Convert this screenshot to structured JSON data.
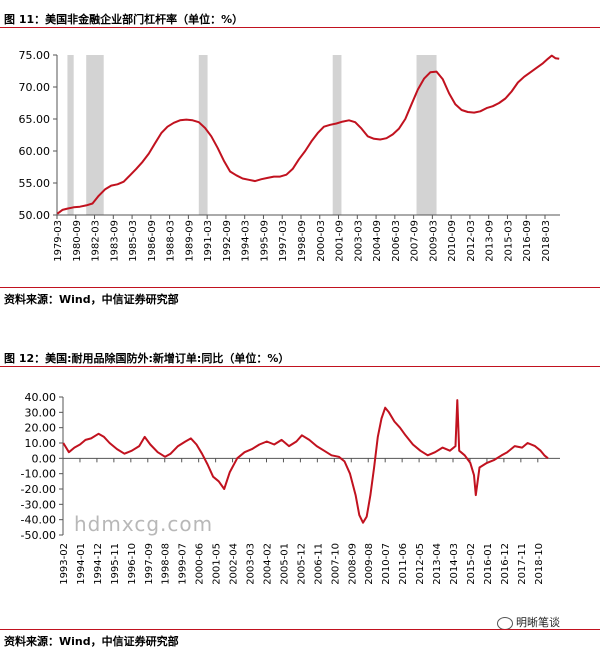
{
  "chart1": {
    "title": "图 11：美国非金融企业部门杠杆率（单位：%）",
    "source": "资料来源：Wind，中信证券研究部"
  },
  "chart2": {
    "title": "图 12：美国:耐用品除国防外:新增订单:同比（单位：%）",
    "source": "资料来源：Wind，中信证券研究部"
  },
  "watermark": "hdmxcg.com",
  "wechat_label": "明晰笔谈",
  "colors": {
    "line": "#c1121f",
    "recession": "#d3d3d3",
    "rule": "#c1121f"
  },
  "chart_data": [
    {
      "type": "line",
      "title": "",
      "xlabel": "",
      "ylabel": "",
      "ylim": [
        50,
        75
      ],
      "yticks": [
        "50.00",
        "55.00",
        "60.00",
        "65.00",
        "70.00",
        "75.00"
      ],
      "categories": [
        "1979-03",
        "1980-09",
        "1982-03",
        "1983-09",
        "1985-03",
        "1986-09",
        "1988-03",
        "1989-09",
        "1991-03",
        "1992-09",
        "1994-03",
        "1995-09",
        "1997-03",
        "1998-09",
        "2000-03",
        "2001-09",
        "2003-03",
        "2004-09",
        "2006-03",
        "2007-09",
        "2009-03",
        "2010-09",
        "2012-03",
        "2013-09",
        "2015-03",
        "2016-09",
        "2018-03"
      ],
      "recessions": [
        [
          1980.0,
          1980.5
        ],
        [
          1981.5,
          1982.9
        ],
        [
          1990.5,
          1991.2
        ],
        [
          2001.2,
          2001.9
        ],
        [
          2007.9,
          2009.5
        ]
      ],
      "series": [
        {
          "values": [
            [
              1979.2,
              50.2
            ],
            [
              1979.6,
              50.8
            ],
            [
              1980.0,
              51.0
            ],
            [
              1980.5,
              51.2
            ],
            [
              1981.0,
              51.3
            ],
            [
              1981.5,
              51.5
            ],
            [
              1982.0,
              51.8
            ],
            [
              1982.5,
              53.0
            ],
            [
              1983.0,
              54.0
            ],
            [
              1983.5,
              54.6
            ],
            [
              1984.0,
              54.8
            ],
            [
              1984.5,
              55.2
            ],
            [
              1985.0,
              56.2
            ],
            [
              1985.5,
              57.2
            ],
            [
              1986.0,
              58.3
            ],
            [
              1986.5,
              59.6
            ],
            [
              1987.0,
              61.2
            ],
            [
              1987.5,
              62.8
            ],
            [
              1988.0,
              63.8
            ],
            [
              1988.5,
              64.4
            ],
            [
              1989.0,
              64.8
            ],
            [
              1989.5,
              64.9
            ],
            [
              1990.0,
              64.8
            ],
            [
              1990.5,
              64.5
            ],
            [
              1991.0,
              63.6
            ],
            [
              1991.5,
              62.3
            ],
            [
              1992.0,
              60.5
            ],
            [
              1992.5,
              58.5
            ],
            [
              1993.0,
              56.8
            ],
            [
              1993.5,
              56.2
            ],
            [
              1994.0,
              55.7
            ],
            [
              1994.5,
              55.5
            ],
            [
              1995.0,
              55.3
            ],
            [
              1995.5,
              55.6
            ],
            [
              1996.0,
              55.8
            ],
            [
              1996.5,
              56.0
            ],
            [
              1997.0,
              56.0
            ],
            [
              1997.5,
              56.3
            ],
            [
              1998.0,
              57.2
            ],
            [
              1998.5,
              58.7
            ],
            [
              1999.0,
              60.0
            ],
            [
              1999.5,
              61.5
            ],
            [
              2000.0,
              62.8
            ],
            [
              2000.5,
              63.8
            ],
            [
              2001.0,
              64.1
            ],
            [
              2001.5,
              64.3
            ],
            [
              2002.0,
              64.6
            ],
            [
              2002.5,
              64.8
            ],
            [
              2003.0,
              64.5
            ],
            [
              2003.5,
              63.5
            ],
            [
              2004.0,
              62.3
            ],
            [
              2004.5,
              61.9
            ],
            [
              2005.0,
              61.8
            ],
            [
              2005.5,
              62.0
            ],
            [
              2006.0,
              62.6
            ],
            [
              2006.5,
              63.5
            ],
            [
              2007.0,
              65.0
            ],
            [
              2007.5,
              67.3
            ],
            [
              2008.0,
              69.6
            ],
            [
              2008.5,
              71.3
            ],
            [
              2009.0,
              72.3
            ],
            [
              2009.5,
              72.4
            ],
            [
              2010.0,
              71.2
            ],
            [
              2010.5,
              69.0
            ],
            [
              2011.0,
              67.3
            ],
            [
              2011.5,
              66.4
            ],
            [
              2012.0,
              66.1
            ],
            [
              2012.5,
              66.0
            ],
            [
              2013.0,
              66.2
            ],
            [
              2013.5,
              66.7
            ],
            [
              2014.0,
              67.0
            ],
            [
              2014.5,
              67.5
            ],
            [
              2015.0,
              68.2
            ],
            [
              2015.5,
              69.3
            ],
            [
              2016.0,
              70.7
            ],
            [
              2016.5,
              71.6
            ],
            [
              2017.0,
              72.3
            ],
            [
              2017.5,
              73.0
            ],
            [
              2018.0,
              73.7
            ],
            [
              2018.4,
              74.4
            ],
            [
              2018.7,
              74.9
            ],
            [
              2019.0,
              74.5
            ],
            [
              2019.3,
              74.4
            ]
          ]
        }
      ]
    },
    {
      "type": "line",
      "title": "",
      "xlabel": "",
      "ylabel": "",
      "ylim": [
        -50,
        40
      ],
      "yticks": [
        "-50.00",
        "-40.00",
        "-30.00",
        "-20.00",
        "-10.00",
        "0.00",
        "10.00",
        "20.00",
        "30.00",
        "40.00"
      ],
      "categories": [
        "1993-02",
        "1994-01",
        "1994-12",
        "1995-11",
        "1996-10",
        "1997-09",
        "1998-08",
        "1999-07",
        "2000-06",
        "2001-05",
        "2002-04",
        "2003-03",
        "2004-02",
        "2005-01",
        "2005-12",
        "2006-11",
        "2007-10",
        "2008-09",
        "2009-08",
        "2010-07",
        "2011-06",
        "2012-05",
        "2013-04",
        "2014-03",
        "2015-02",
        "2016-01",
        "2016-12",
        "2017-11",
        "2018-10"
      ],
      "series": [
        {
          "values": [
            [
              1993.1,
              10
            ],
            [
              1993.4,
              4
            ],
            [
              1993.7,
              7
            ],
            [
              1994.0,
              9
            ],
            [
              1994.3,
              12
            ],
            [
              1994.6,
              13
            ],
            [
              1995.0,
              16
            ],
            [
              1995.3,
              14
            ],
            [
              1995.6,
              10
            ],
            [
              1996.0,
              6
            ],
            [
              1996.4,
              3
            ],
            [
              1996.8,
              5
            ],
            [
              1997.2,
              8
            ],
            [
              1997.5,
              14
            ],
            [
              1997.8,
              9
            ],
            [
              1998.2,
              4
            ],
            [
              1998.6,
              1
            ],
            [
              1998.9,
              3
            ],
            [
              1999.3,
              8
            ],
            [
              1999.7,
              11
            ],
            [
              2000.0,
              13
            ],
            [
              2000.3,
              9
            ],
            [
              2000.6,
              3
            ],
            [
              2000.9,
              -4
            ],
            [
              2001.2,
              -12
            ],
            [
              2001.5,
              -15
            ],
            [
              2001.8,
              -20
            ],
            [
              2002.1,
              -9
            ],
            [
              2002.5,
              0
            ],
            [
              2002.9,
              4
            ],
            [
              2003.3,
              6
            ],
            [
              2003.7,
              9
            ],
            [
              2004.1,
              11
            ],
            [
              2004.5,
              9
            ],
            [
              2004.9,
              12
            ],
            [
              2005.3,
              8
            ],
            [
              2005.7,
              11
            ],
            [
              2006.0,
              15
            ],
            [
              2006.4,
              12
            ],
            [
              2006.8,
              8
            ],
            [
              2007.2,
              5
            ],
            [
              2007.6,
              2
            ],
            [
              2008.0,
              1
            ],
            [
              2008.3,
              -2
            ],
            [
              2008.6,
              -10
            ],
            [
              2008.9,
              -24
            ],
            [
              2009.1,
              -37
            ],
            [
              2009.3,
              -42
            ],
            [
              2009.5,
              -38
            ],
            [
              2009.7,
              -24
            ],
            [
              2009.9,
              -6
            ],
            [
              2010.1,
              14
            ],
            [
              2010.3,
              26
            ],
            [
              2010.5,
              33
            ],
            [
              2010.7,
              30
            ],
            [
              2011.0,
              24
            ],
            [
              2011.3,
              20
            ],
            [
              2011.6,
              15
            ],
            [
              2012.0,
              9
            ],
            [
              2012.4,
              5
            ],
            [
              2012.8,
              2
            ],
            [
              2013.2,
              4
            ],
            [
              2013.6,
              7
            ],
            [
              2014.0,
              5
            ],
            [
              2014.3,
              8
            ],
            [
              2014.4,
              38
            ],
            [
              2014.5,
              5
            ],
            [
              2014.8,
              2
            ],
            [
              2015.1,
              -3
            ],
            [
              2015.3,
              -11
            ],
            [
              2015.4,
              -24
            ],
            [
              2015.6,
              -6
            ],
            [
              2016.0,
              -3
            ],
            [
              2016.4,
              -1
            ],
            [
              2016.8,
              2
            ],
            [
              2017.1,
              4
            ],
            [
              2017.5,
              8
            ],
            [
              2017.9,
              7
            ],
            [
              2018.2,
              10
            ],
            [
              2018.6,
              8
            ],
            [
              2018.9,
              5
            ],
            [
              2019.1,
              2
            ],
            [
              2019.3,
              0
            ]
          ]
        }
      ]
    }
  ]
}
